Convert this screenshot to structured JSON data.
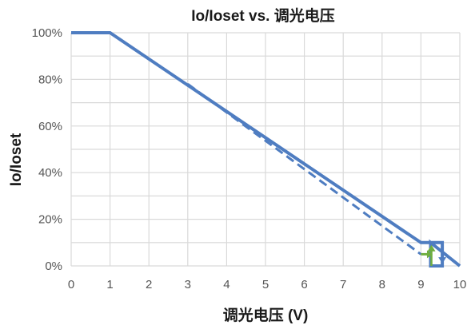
{
  "chart_data": {
    "type": "line",
    "title": "Io/Ioset vs. 调光电压",
    "xlabel": "调光电压 (V)",
    "ylabel": "Io/Ioset",
    "xlim": [
      0,
      10
    ],
    "ylim": [
      0,
      100
    ],
    "x_ticks": [
      "0",
      "1",
      "2",
      "3",
      "4",
      "5",
      "6",
      "7",
      "8",
      "9",
      "10"
    ],
    "y_ticks": [
      "0%",
      "20%",
      "40%",
      "60%",
      "80%",
      "100%"
    ],
    "grid": true,
    "series": [
      {
        "style": "solid",
        "color": "#4f7dc1",
        "x": [
          0,
          1,
          9,
          9.55,
          9.55,
          9.25,
          9.25,
          10
        ],
        "y": [
          100,
          100,
          10,
          10,
          0,
          0,
          10,
          0
        ]
      },
      {
        "style": "dashed",
        "color": "#4f7dc1",
        "x": [
          3,
          9
        ],
        "y": [
          78,
          5
        ]
      }
    ],
    "annotations": [
      {
        "type": "arrow",
        "color": "#6fae3f",
        "direction": "right",
        "x_from": 9.0,
        "x_to": 9.3,
        "y": 5
      },
      {
        "type": "arrow",
        "color": "#6fae3f",
        "direction": "up",
        "x": 9.27,
        "y_from": 0,
        "y_to": 9
      },
      {
        "type": "arrow",
        "color": "#4f7dc1",
        "direction": "down",
        "x": 9.55,
        "y_from": 9,
        "y_to": 1
      }
    ]
  },
  "colors": {
    "grid": "#d9d9d9",
    "line": "#4f7dc1",
    "arrow_green": "#6fae3f"
  }
}
